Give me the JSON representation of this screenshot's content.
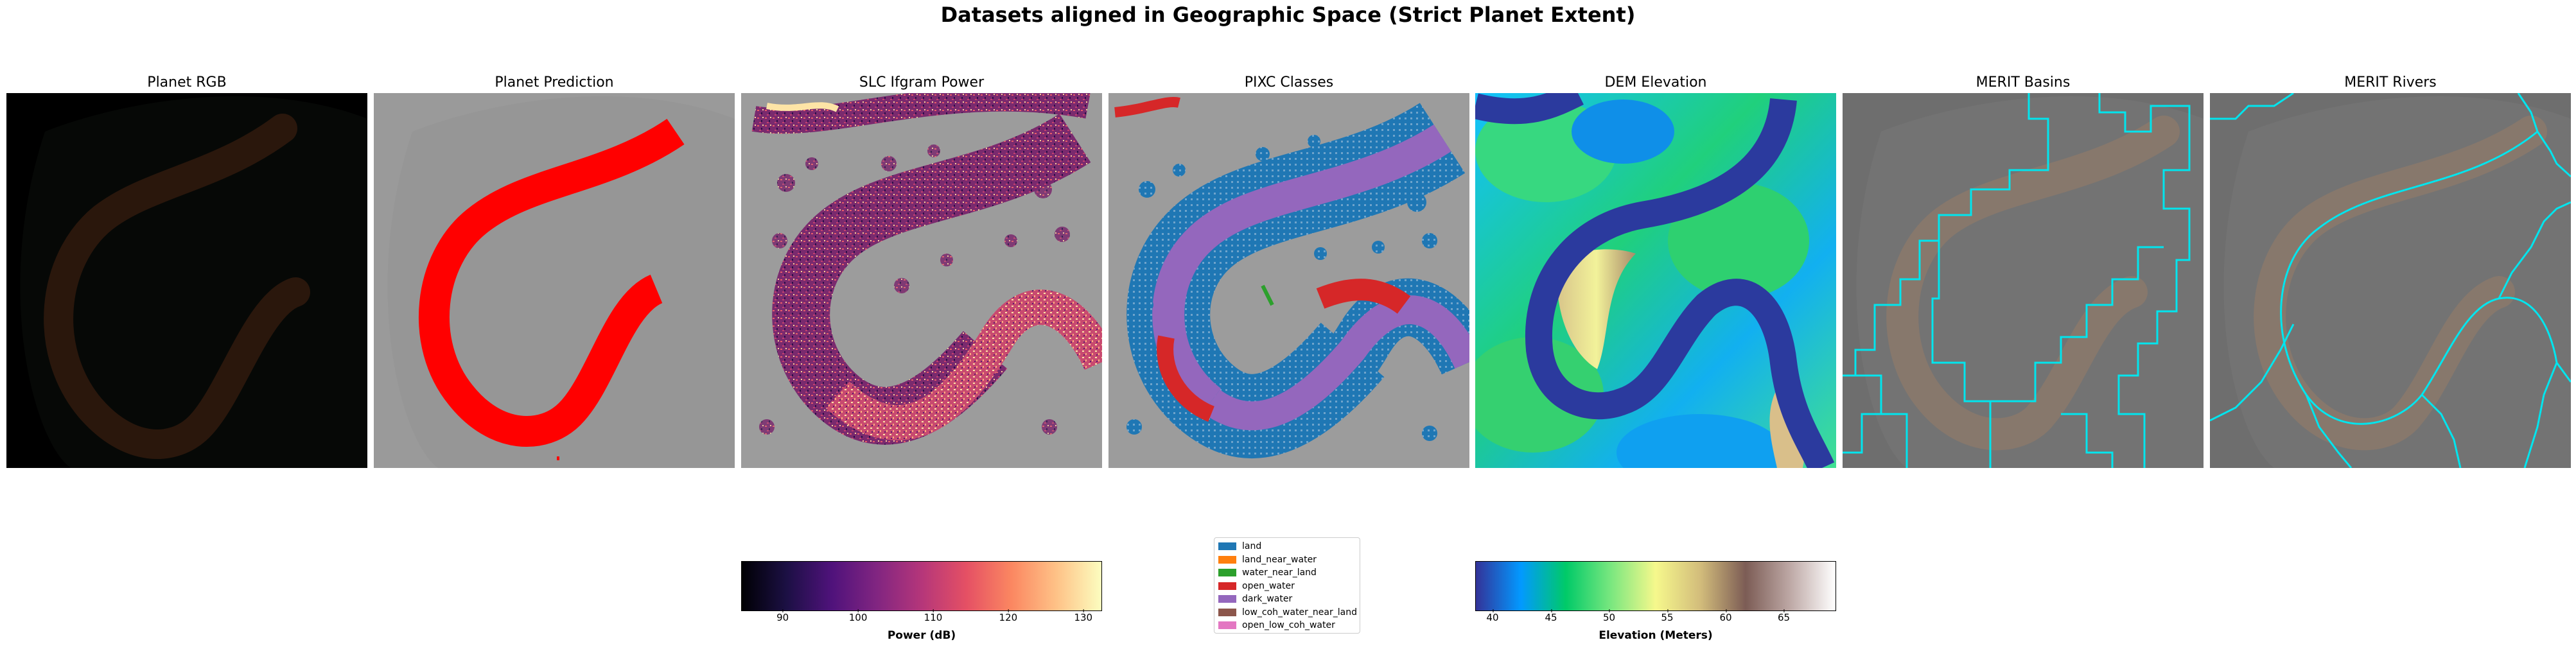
{
  "figure": {
    "title": "Datasets aligned in Geographic Space (Strict Planet Extent)"
  },
  "panels": [
    {
      "title": "Planet RGB"
    },
    {
      "title": "Planet Prediction"
    },
    {
      "title": "SLC Ifgram Power"
    },
    {
      "title": "PIXC Classes"
    },
    {
      "title": "DEM Elevation"
    },
    {
      "title": "MERIT Basins"
    },
    {
      "title": "MERIT Rivers"
    }
  ],
  "power_colorbar": {
    "label": "Power (dB)",
    "colormap": "magma",
    "ticks": [
      "90",
      "100",
      "110",
      "120",
      "130"
    ],
    "range": [
      85,
      133
    ]
  },
  "elevation_colorbar": {
    "label": "Elevation (Meters)",
    "colormap": "terrain",
    "ticks": [
      "40",
      "45",
      "50",
      "55",
      "60",
      "65"
    ],
    "range": [
      38.5,
      69.5
    ]
  },
  "pixc_legend": [
    {
      "label": "land",
      "color": "#1f77b4"
    },
    {
      "label": "land_near_water",
      "color": "#ff7f0e"
    },
    {
      "label": "water_near_land",
      "color": "#2ca02c"
    },
    {
      "label": "open_water",
      "color": "#d62728"
    },
    {
      "label": "dark_water",
      "color": "#9467bd"
    },
    {
      "label": "low_coh_water_near_land",
      "color": "#8c564b"
    },
    {
      "label": "open_low_coh_water",
      "color": "#e377c2"
    }
  ],
  "colors": {
    "prediction": "#ff0000",
    "merit_lines": "#00e5ee",
    "dem_river": "#2b3a9e"
  }
}
